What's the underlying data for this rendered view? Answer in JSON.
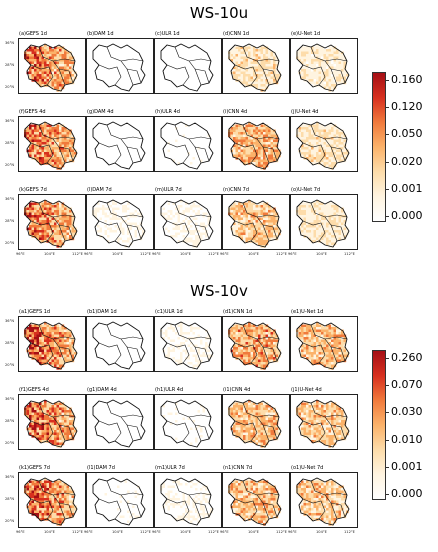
{
  "chart_data": [
    {
      "type": "heatmap",
      "title": "WS-10u",
      "colorbar": {
        "ticks": [
          "0.160",
          "0.120",
          "0.050",
          "0.020",
          "0.001",
          "0.000"
        ]
      },
      "panels": [
        {
          "label": "(a)GEFS 1d",
          "intensity": 0.95
        },
        {
          "label": "(b)DAM 1d",
          "intensity": 0.05
        },
        {
          "label": "(c)ULR 1d",
          "intensity": 0.12
        },
        {
          "label": "(d)CNN 1d",
          "intensity": 0.45
        },
        {
          "label": "(e)U-Net 1d",
          "intensity": 0.35
        },
        {
          "label": "(f)GEFS 4d",
          "intensity": 0.95
        },
        {
          "label": "(g)DAM 4d",
          "intensity": 0.12
        },
        {
          "label": "(h)ULR 4d",
          "intensity": 0.15
        },
        {
          "label": "(i)CNN 4d",
          "intensity": 0.7
        },
        {
          "label": "(j)U-Net 4d",
          "intensity": 0.45
        },
        {
          "label": "(k)GEFS 7d",
          "intensity": 0.95
        },
        {
          "label": "(l)DAM 7d",
          "intensity": 0.2
        },
        {
          "label": "(m)ULR 7d",
          "intensity": 0.2
        },
        {
          "label": "(n)CNN 7d",
          "intensity": 0.6
        },
        {
          "label": "(o)U-Net 7d",
          "intensity": 0.4
        }
      ]
    },
    {
      "type": "heatmap",
      "title": "WS-10v",
      "colorbar": {
        "ticks": [
          "0.260",
          "0.070",
          "0.030",
          "0.010",
          "0.001",
          "0.000"
        ]
      },
      "panels": [
        {
          "label": "(a1)GEFS 1d",
          "intensity": 1.0
        },
        {
          "label": "(b1)DAM 1d",
          "intensity": 0.04
        },
        {
          "label": "(c1)ULR 1d",
          "intensity": 0.2
        },
        {
          "label": "(d1)CNN 1d",
          "intensity": 0.75
        },
        {
          "label": "(e1)U-Net 1d",
          "intensity": 0.65
        },
        {
          "label": "(f1)GEFS 4d",
          "intensity": 1.0
        },
        {
          "label": "(g1)DAM 4d",
          "intensity": 0.1
        },
        {
          "label": "(h1)ULR 4d",
          "intensity": 0.15
        },
        {
          "label": "(i1)CNN 4d",
          "intensity": 0.65
        },
        {
          "label": "(j1)U-Net 4d",
          "intensity": 0.6
        },
        {
          "label": "(k1)GEFS 7d",
          "intensity": 1.0
        },
        {
          "label": "(l1)DAM 7d",
          "intensity": 0.15
        },
        {
          "label": "(m1)ULR 7d",
          "intensity": 0.2
        },
        {
          "label": "(n1)CNN 7d",
          "intensity": 0.65
        },
        {
          "label": "(o1)U-Net 7d",
          "intensity": 0.6
        }
      ]
    }
  ],
  "axes": {
    "yticks": [
      "36°N",
      "28°N",
      "20°N"
    ],
    "xticks": [
      "96°E",
      "104°E",
      "112°E"
    ]
  },
  "colors": {
    "scale": [
      "#ffffff",
      "#fff4e0",
      "#fddcaa",
      "#fbb26a",
      "#f07a3c",
      "#d7301f",
      "#a50f15"
    ]
  }
}
